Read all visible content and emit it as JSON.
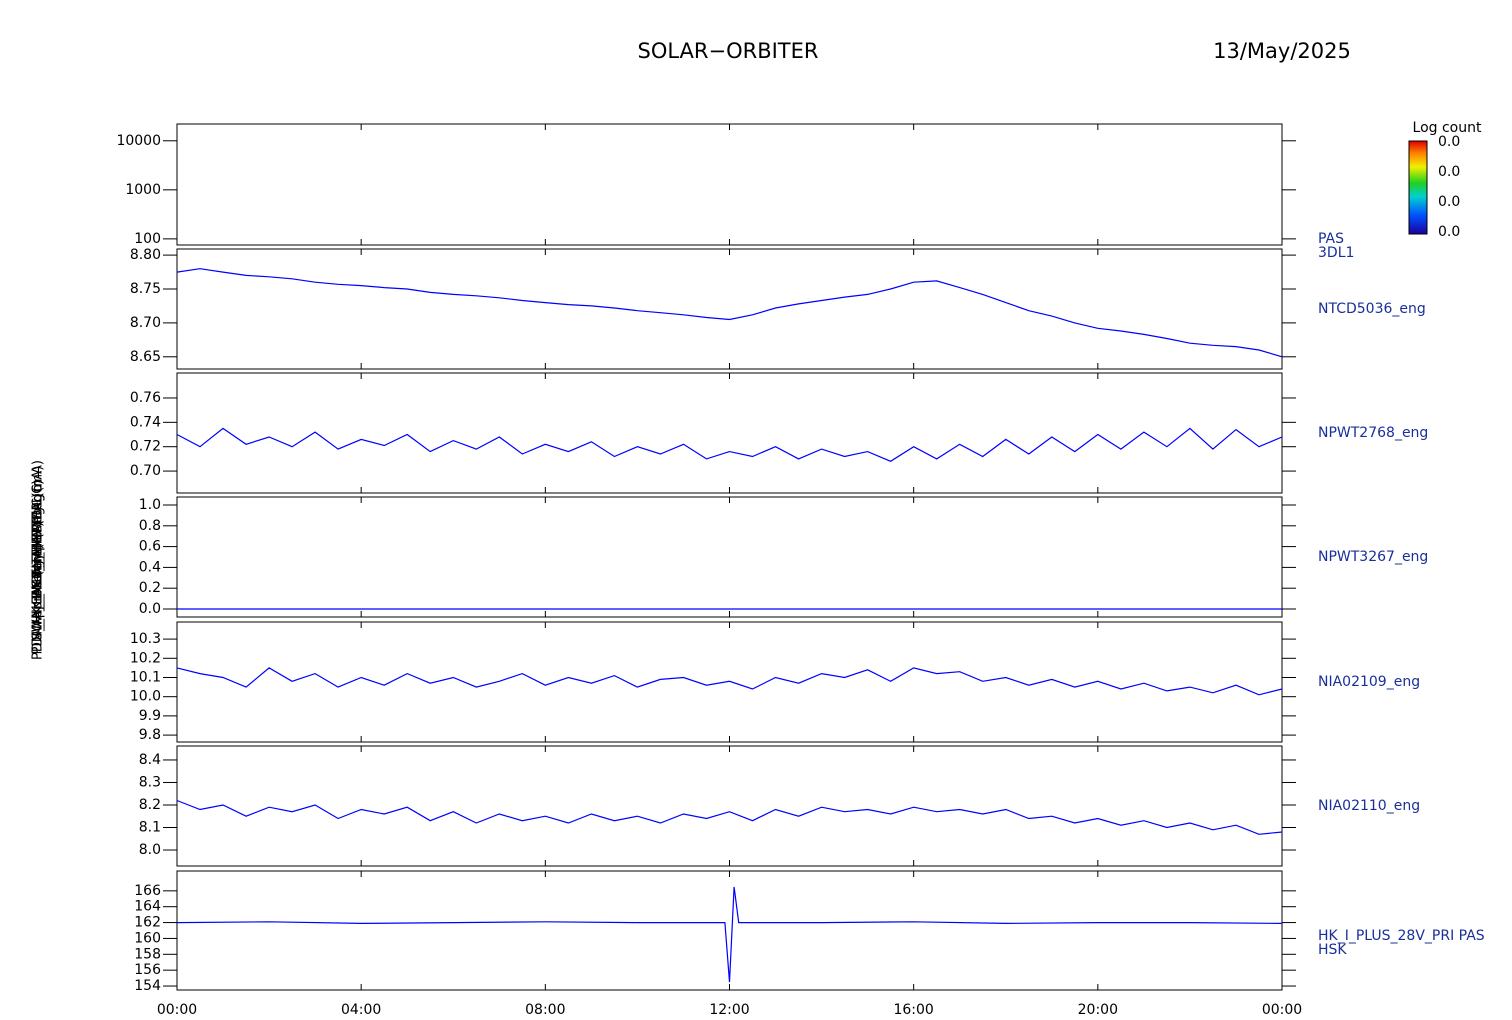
{
  "header": {
    "title": "SOLAR−ORBITER",
    "date": "13/May/2025"
  },
  "time_axis": {
    "xlim": [
      0,
      24
    ],
    "xticks": [
      {
        "value": 0,
        "label": "00:00"
      },
      {
        "value": 4,
        "label": "04:00"
      },
      {
        "value": 8,
        "label": "08:00"
      },
      {
        "value": 12,
        "label": "12:00"
      },
      {
        "value": 16,
        "label": "16:00"
      },
      {
        "value": 20,
        "label": "20:00"
      },
      {
        "value": 24,
        "label": "00:00"
      }
    ],
    "x": [
      0,
      0.5,
      1,
      1.5,
      2,
      2.5,
      3,
      3.5,
      4,
      4.5,
      5,
      5.5,
      6,
      6.5,
      7,
      7.5,
      8,
      8.5,
      9,
      9.5,
      10,
      10.5,
      11,
      11.5,
      12,
      12.5,
      13,
      13.5,
      14,
      14.5,
      15,
      15.5,
      16,
      16.5,
      17,
      17.5,
      18,
      18.5,
      19,
      19.5,
      20,
      20.5,
      21,
      21.5,
      22,
      22.5,
      23,
      23.5,
      24
    ]
  },
  "chart_data": [
    {
      "type": "spectrogram",
      "ylabel": "Energy (eV)",
      "log_scale": true,
      "ylim": [
        75,
        22000
      ],
      "yticks": [
        100,
        1000,
        10000
      ],
      "name_lines": [
        "PAS",
        "3DL1"
      ],
      "colorbar": {
        "label": "Log count",
        "tick_labels": [
          "0.0",
          "0.0",
          "0.0",
          "0.0"
        ]
      }
    },
    {
      "type": "line",
      "ylabel": "Approx Temp (DegC)",
      "ylim": [
        8.632,
        8.809
      ],
      "yticks": [
        8.65,
        {
          "value": 8.7,
          "label": "8.70"
        },
        8.75,
        {
          "value": 8.8,
          "label": "8.80"
        }
      ],
      "series": [
        {
          "name": "NTCD5036_eng",
          "color": "#0000ff",
          "values": [
            8.775,
            8.78,
            8.775,
            8.77,
            8.768,
            8.765,
            8.76,
            8.757,
            8.755,
            8.752,
            8.75,
            8.745,
            8.742,
            8.74,
            8.737,
            8.733,
            8.73,
            8.727,
            8.725,
            8.722,
            8.718,
            8.715,
            8.712,
            8.708,
            8.705,
            8.712,
            8.722,
            8.728,
            8.733,
            8.738,
            8.742,
            8.75,
            8.76,
            8.762,
            8.752,
            8.742,
            8.73,
            8.718,
            8.71,
            8.7,
            8.692,
            8.688,
            8.683,
            8.677,
            8.67,
            8.667,
            8.665,
            8.66,
            8.65
          ]
        }
      ]
    },
    {
      "type": "line",
      "ylabel": "SWA_EAS1_TEMP (DegC)",
      "ylim": [
        0.682,
        0.7805
      ],
      "yticks": [
        {
          "value": 0.7,
          "label": "0.70"
        },
        0.72,
        0.74,
        0.76
      ],
      "series": [
        {
          "name": "NPWT2768_eng",
          "color": "#0000ff",
          "values": [
            0.73,
            0.72,
            0.735,
            0.722,
            0.728,
            0.72,
            0.732,
            0.718,
            0.726,
            0.721,
            0.73,
            0.716,
            0.725,
            0.718,
            0.728,
            0.714,
            0.722,
            0.716,
            0.724,
            0.712,
            0.72,
            0.714,
            0.722,
            0.71,
            0.716,
            0.712,
            0.72,
            0.71,
            0.718,
            0.712,
            0.716,
            0.708,
            0.72,
            0.71,
            0.722,
            0.712,
            0.726,
            0.714,
            0.728,
            0.716,
            0.73,
            0.718,
            0.732,
            0.72,
            0.735,
            0.718,
            0.734,
            0.72,
            0.728
          ]
        }
      ]
    },
    {
      "type": "line",
      "ylabel": "SWA_EAS2_TEMP (DegC)",
      "ylim": [
        -0.077,
        1.077
      ],
      "yticks": [
        {
          "value": 0,
          "label": "0.0"
        },
        0.2,
        0.4,
        0.6,
        0.8,
        {
          "value": 1,
          "label": "1.0"
        }
      ],
      "series": [
        {
          "name": "NPWT3267_eng",
          "color": "#0000ff",
          "values": [
            0,
            0,
            0,
            0,
            0,
            0,
            0,
            0,
            0,
            0,
            0,
            0,
            0,
            0,
            0,
            0,
            0,
            0,
            0,
            0,
            0,
            0,
            0,
            0,
            0,
            0,
            0,
            0,
            0,
            0,
            0,
            0,
            0,
            0,
            0,
            0,
            0,
            0,
            0,
            0,
            0,
            0,
            0,
            0,
            0,
            0,
            0,
            0,
            0
          ]
        }
      ]
    },
    {
      "type": "line",
      "ylabel": "PDM_HK_IMON_THERMAL (mA)",
      "ylim": [
        9.764,
        10.389
      ],
      "yticks": [
        9.8,
        9.9,
        {
          "value": 10,
          "label": "10.0"
        },
        10.1,
        10.2,
        10.3
      ],
      "series": [
        {
          "name": "NIA02109_eng",
          "color": "#0000ff",
          "values": [
            10.15,
            10.12,
            10.1,
            10.05,
            10.15,
            10.08,
            10.12,
            10.05,
            10.1,
            10.06,
            10.12,
            10.07,
            10.1,
            10.05,
            10.08,
            10.12,
            10.06,
            10.1,
            10.07,
            10.11,
            10.05,
            10.09,
            10.1,
            10.06,
            10.08,
            10.04,
            10.1,
            10.07,
            10.12,
            10.1,
            10.14,
            10.08,
            10.15,
            10.12,
            10.13,
            10.08,
            10.1,
            10.06,
            10.09,
            10.05,
            10.08,
            10.04,
            10.07,
            10.03,
            10.05,
            10.02,
            10.06,
            10.01,
            10.04
          ]
        }
      ]
    },
    {
      "type": "line",
      "ylabel": "PDM_HK_IMON_HEATER (mA)",
      "ylim": [
        7.929,
        8.462
      ],
      "yticks": [
        {
          "value": 8,
          "label": "8.0"
        },
        8.1,
        8.2,
        8.3,
        8.4
      ],
      "series": [
        {
          "name": "NIA02110_eng",
          "color": "#0000ff",
          "values": [
            8.22,
            8.18,
            8.2,
            8.15,
            8.19,
            8.17,
            8.2,
            8.14,
            8.18,
            8.16,
            8.19,
            8.13,
            8.17,
            8.12,
            8.16,
            8.13,
            8.15,
            8.12,
            8.16,
            8.13,
            8.15,
            8.12,
            8.16,
            8.14,
            8.17,
            8.13,
            8.18,
            8.15,
            8.19,
            8.17,
            8.18,
            8.16,
            8.19,
            8.17,
            8.18,
            8.16,
            8.18,
            8.14,
            8.15,
            8.12,
            8.14,
            8.11,
            8.13,
            8.1,
            8.12,
            8.09,
            8.11,
            8.07,
            8.08
          ]
        }
      ]
    },
    {
      "type": "line",
      "ylabel": "(mA)",
      "ylim": [
        153.5,
        168.5
      ],
      "yticks": [
        154,
        156,
        158,
        160,
        162,
        164,
        166
      ],
      "x": [
        0,
        2,
        4,
        6,
        8,
        10,
        11.9,
        12,
        12.1,
        12.2,
        14,
        16,
        18,
        20,
        22,
        24
      ],
      "series": [
        {
          "name_lines": [
            "HK_I_PLUS_28V_PRI PAS",
            "HSK"
          ],
          "color": "#0000ff",
          "values": [
            162,
            162.1,
            161.9,
            162,
            162.1,
            162,
            162,
            154.5,
            166.5,
            162,
            162,
            162.1,
            161.9,
            162,
            162,
            161.9
          ]
        }
      ]
    }
  ]
}
